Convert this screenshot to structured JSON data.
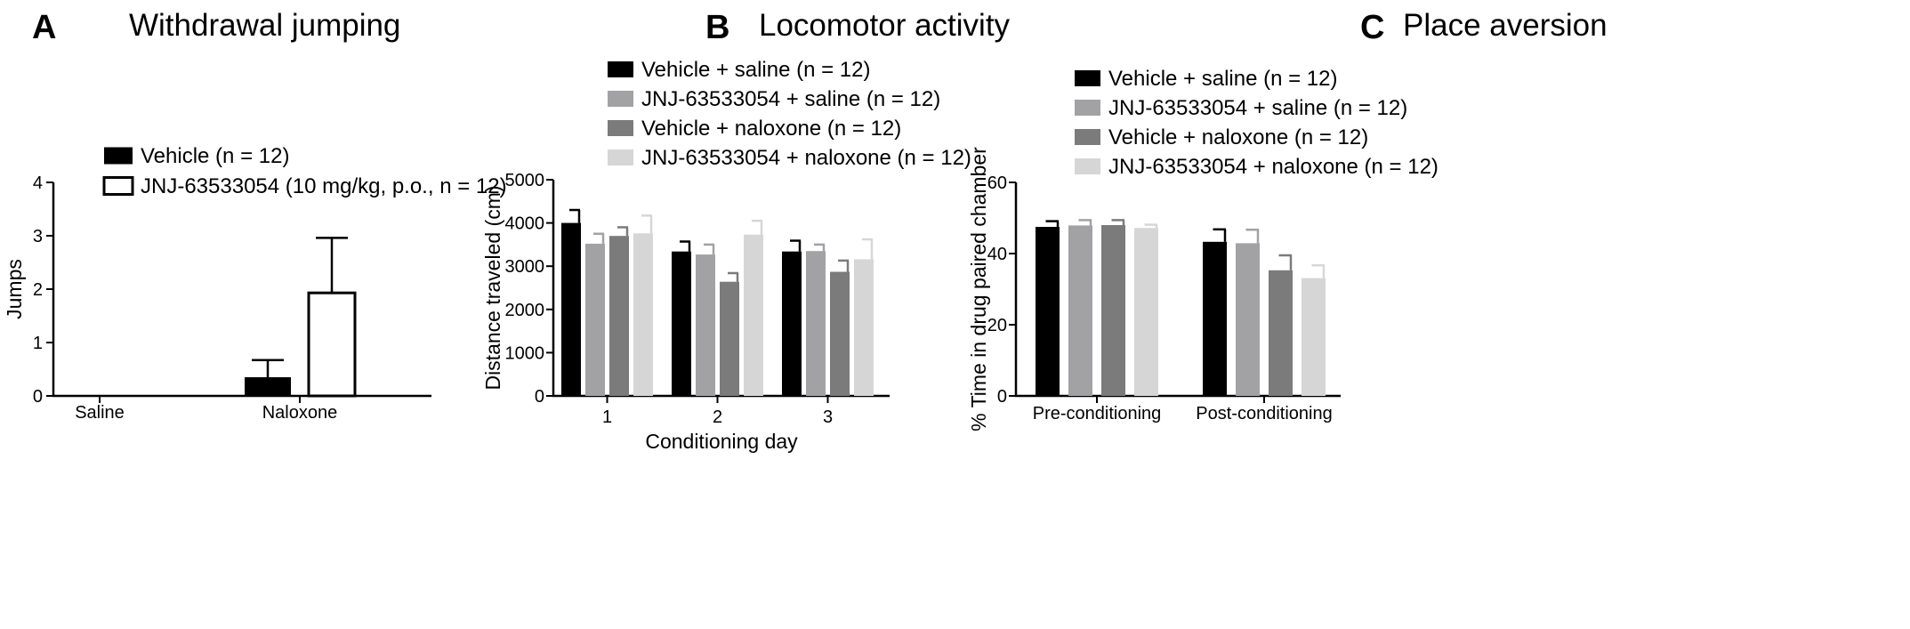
{
  "chart_data": [
    {
      "panel": "A",
      "type": "bar",
      "title": "Withdrawal jumping",
      "xlabel": "",
      "ylabel": "Jumps",
      "ylim": [
        0,
        4
      ],
      "yticks": [
        0,
        1,
        2,
        3,
        4
      ],
      "categories": [
        "Saline",
        "Naloxone"
      ],
      "series": [
        {
          "name": "Vehicle (n = 12)",
          "values": [
            0,
            0.35
          ],
          "errors": [
            0,
            0.32
          ],
          "color": "#000000",
          "fill": "solid"
        },
        {
          "name": "JNJ-63533054 (10 mg/kg, p.o., n = 12)",
          "values": [
            0,
            1.93
          ],
          "errors": [
            0,
            1.03
          ],
          "color": "#000000",
          "fill": "open"
        }
      ],
      "legend": "top"
    },
    {
      "panel": "B",
      "type": "bar",
      "title": "Locomotor activity",
      "xlabel": "Conditioning day",
      "ylabel": "Distance traveled (cm)",
      "ylim": [
        0,
        5000
      ],
      "yticks": [
        0,
        1000,
        2000,
        3000,
        4000,
        5000
      ],
      "categories": [
        "1",
        "2",
        "3"
      ],
      "series": [
        {
          "name": "Vehicle + saline (n = 12)",
          "values": [
            4000,
            3340,
            3340
          ],
          "errors": [
            300,
            230,
            250
          ],
          "color": "#000000"
        },
        {
          "name": "JNJ-63533054 + saline (n = 12)",
          "values": [
            3520,
            3270,
            3350
          ],
          "errors": [
            230,
            230,
            150
          ],
          "color": "#a2a2a4"
        },
        {
          "name": "Vehicle + naloxone (n = 12)",
          "values": [
            3700,
            2640,
            2870
          ],
          "errors": [
            200,
            200,
            260
          ],
          "color": "#7b7b7b"
        },
        {
          "name": "JNJ-63533054 + naloxone (n = 12)",
          "values": [
            3760,
            3730,
            3160
          ],
          "errors": [
            410,
            320,
            460
          ],
          "color": "#d6d6d6"
        }
      ],
      "legend": "top"
    },
    {
      "panel": "C",
      "type": "bar",
      "title": "Place aversion",
      "xlabel": "",
      "ylabel": "% Time in drug paired chamber",
      "ylim": [
        0,
        60
      ],
      "yticks": [
        0,
        20,
        40,
        60
      ],
      "categories": [
        "Pre-conditioning",
        "Post-conditioning"
      ],
      "series": [
        {
          "name": "Vehicle + saline (n = 12)",
          "values": [
            47.5,
            43.3
          ],
          "errors": [
            1.6,
            3.5
          ],
          "color": "#000000"
        },
        {
          "name": "JNJ-63533054 + saline (n = 12)",
          "values": [
            47.9,
            42.9
          ],
          "errors": [
            1.5,
            3.8
          ],
          "color": "#a2a2a4"
        },
        {
          "name": "Vehicle + naloxone (n = 12)",
          "values": [
            48.0,
            35.3
          ],
          "errors": [
            1.4,
            4.2
          ],
          "color": "#7b7b7b"
        },
        {
          "name": "JNJ-63533054 + naloxone (n = 12)",
          "values": [
            47.2,
            33.1
          ],
          "errors": [
            0.9,
            3.6
          ],
          "color": "#d6d6d6"
        }
      ],
      "legend": "top"
    }
  ]
}
